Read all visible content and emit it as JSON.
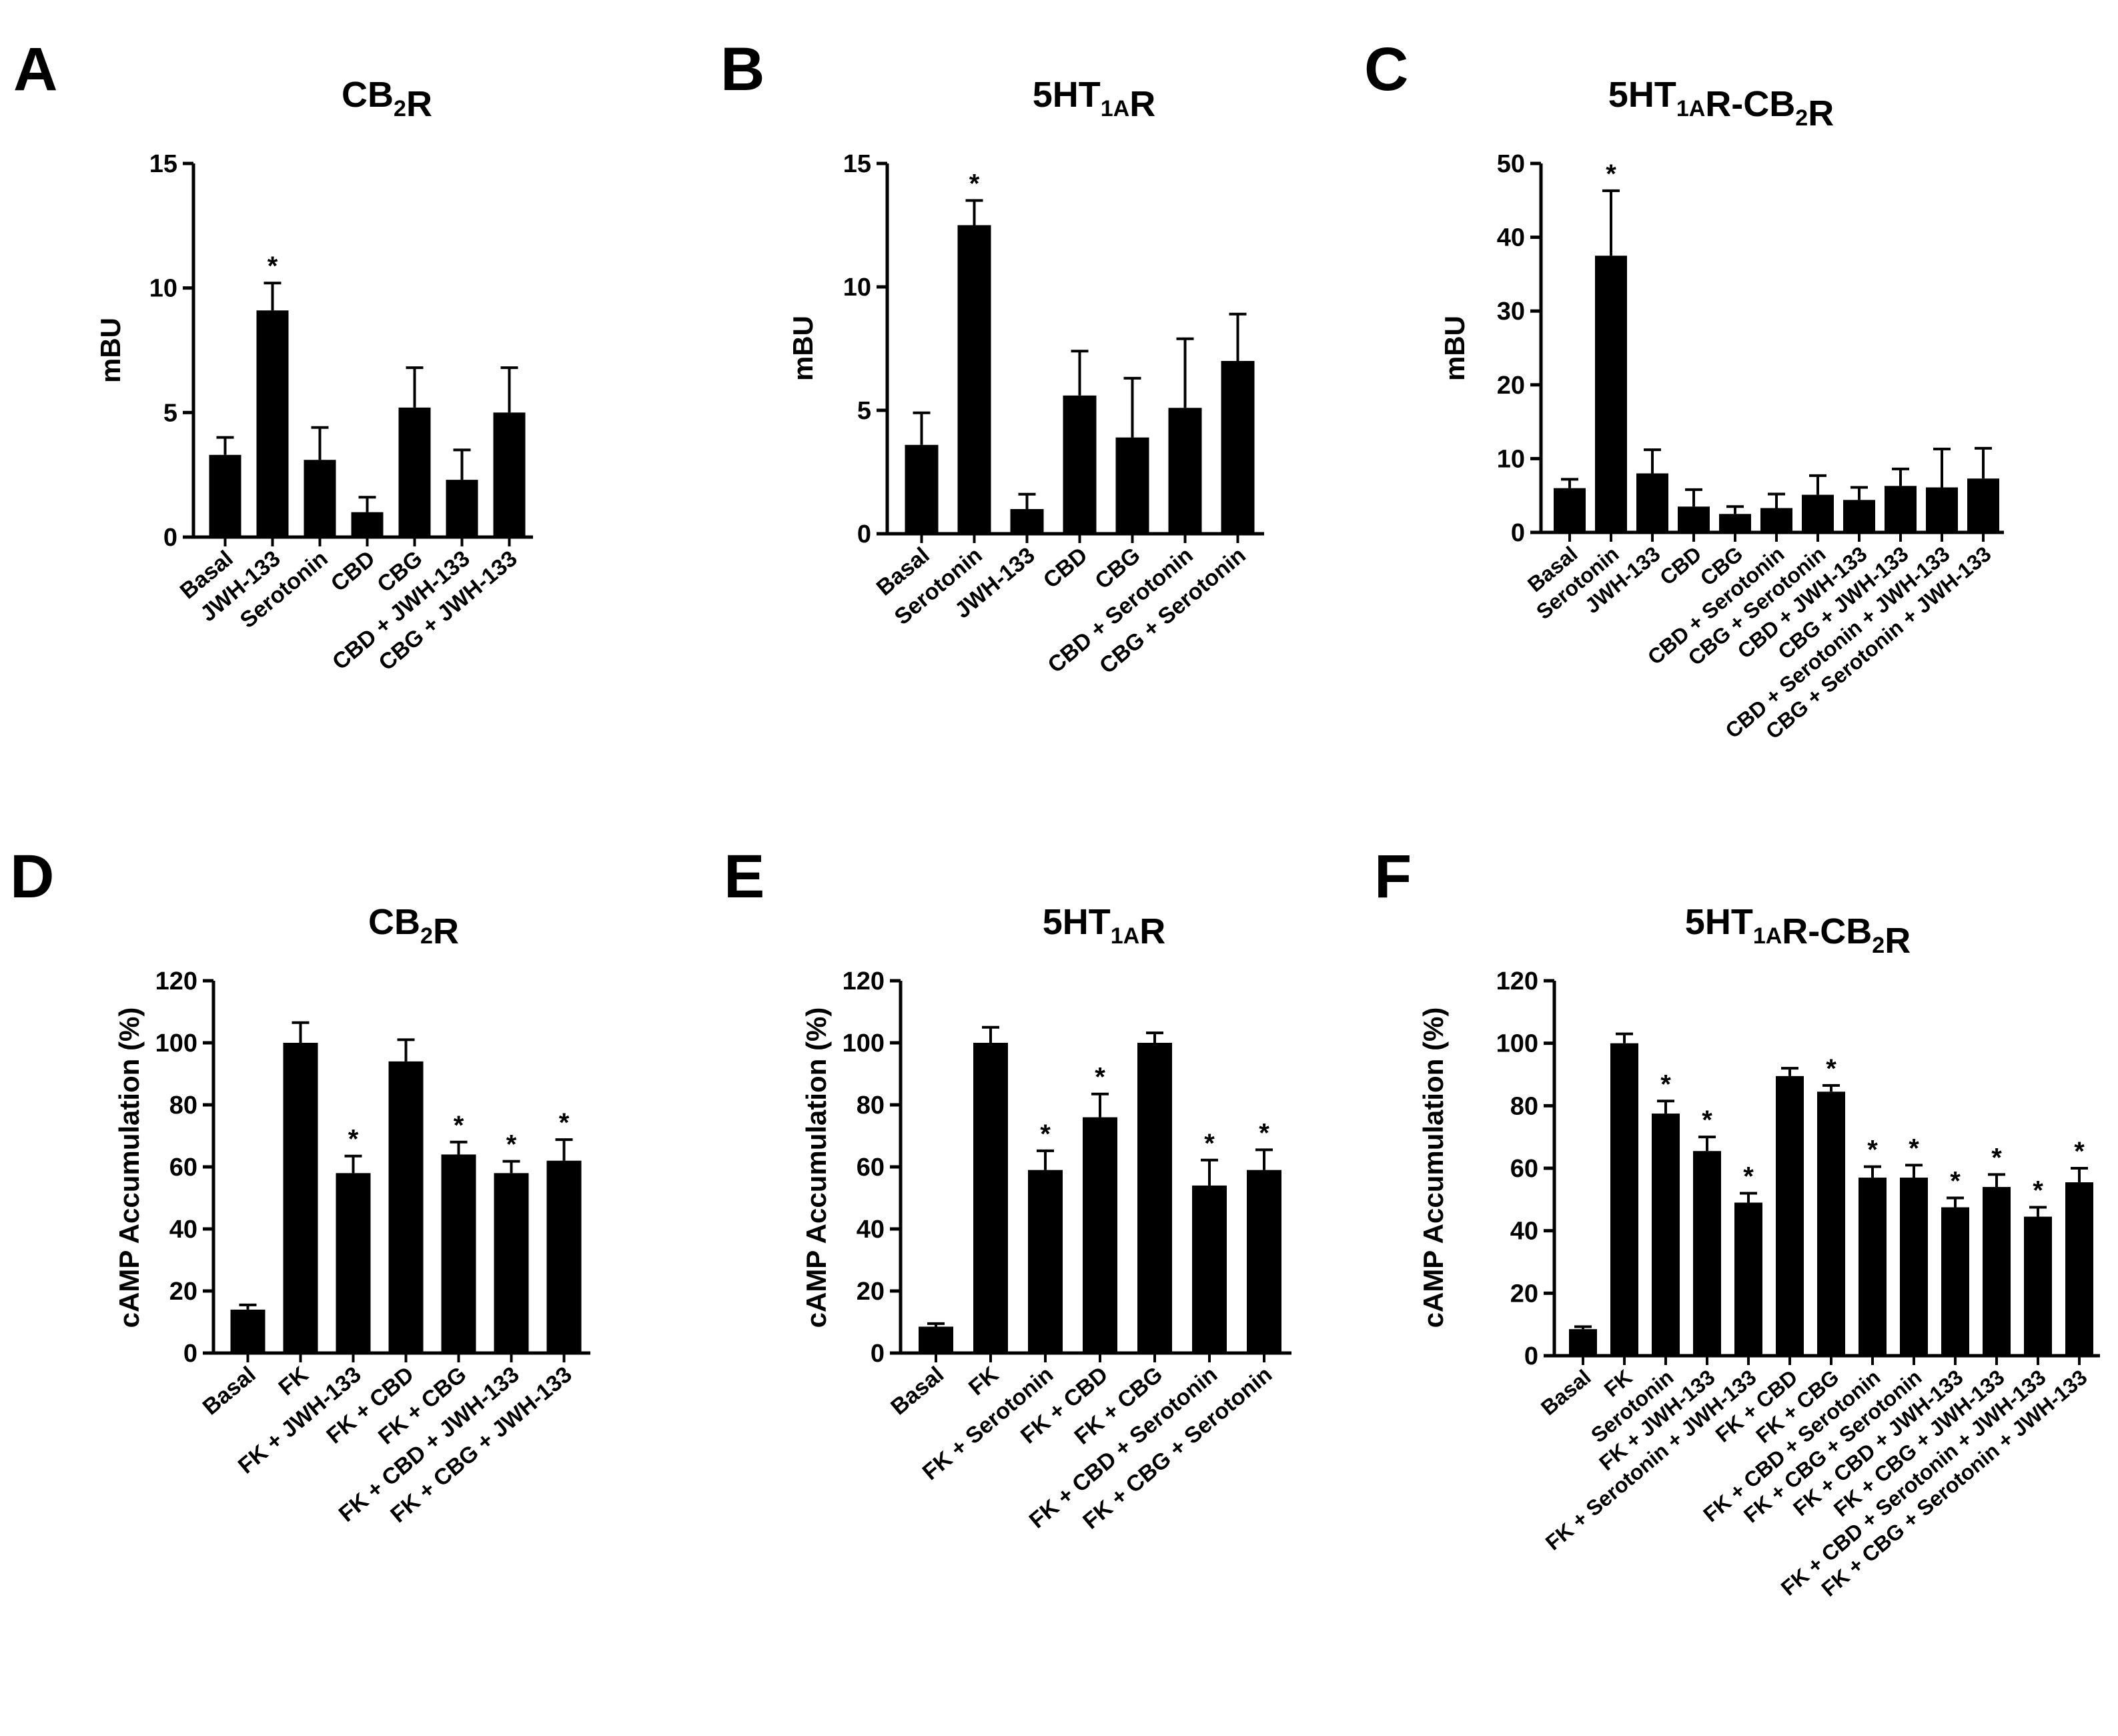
{
  "figure": {
    "description_free": true
  },
  "chart_data": [
    {
      "panel_label": "A",
      "type": "bar",
      "title_parts": [
        {
          "text": "CB"
        },
        {
          "text": "2",
          "sub": true
        },
        {
          "text": "R"
        }
      ],
      "ylabel": "mBU",
      "xlabel": "",
      "ylim": [
        0,
        15
      ],
      "yticks": [
        0,
        5,
        10,
        15
      ],
      "categories": [
        "Basal",
        "JWH-133",
        "Serotonin",
        "CBD",
        "CBG",
        "CBD + JWH-133",
        "CBG + JWH-133"
      ],
      "values": [
        3.3,
        9.1,
        3.1,
        1.0,
        5.2,
        2.3,
        5.0
      ],
      "errors": [
        0.7,
        1.1,
        1.3,
        0.6,
        1.6,
        1.2,
        1.8
      ],
      "significant": [
        false,
        true,
        false,
        false,
        false,
        false,
        false
      ],
      "color": "#000000"
    },
    {
      "panel_label": "B",
      "type": "bar",
      "title_parts": [
        {
          "text": "5HT"
        },
        {
          "text": "1A",
          "sub": true
        },
        {
          "text": "R"
        }
      ],
      "ylabel": "mBU",
      "xlabel": "",
      "ylim": [
        0,
        15
      ],
      "yticks": [
        0,
        5,
        10,
        15
      ],
      "categories": [
        "Basal",
        "Serotonin",
        "JWH-133",
        "CBD",
        "CBG",
        "CBD + Serotonin",
        "CBG + Serotonin"
      ],
      "values": [
        3.6,
        12.5,
        1.0,
        5.6,
        3.9,
        5.1,
        7.0
      ],
      "errors": [
        1.3,
        1.0,
        0.6,
        1.8,
        2.4,
        2.8,
        1.9
      ],
      "significant": [
        false,
        true,
        false,
        false,
        false,
        false,
        false
      ],
      "color": "#000000"
    },
    {
      "panel_label": "C",
      "type": "bar",
      "title_parts": [
        {
          "text": "5HT"
        },
        {
          "text": "1A",
          "sub": true
        },
        {
          "text": "R-CB"
        },
        {
          "text": "2",
          "sub": true
        },
        {
          "text": "R"
        }
      ],
      "ylabel": "mBU",
      "xlabel": "",
      "ylim": [
        0,
        50
      ],
      "yticks": [
        0,
        10,
        20,
        30,
        40,
        50
      ],
      "categories": [
        "Basal",
        "Serotonin",
        "JWH-133",
        "CBD",
        "CBG",
        "CBD + Serotonin",
        "CBG + Serotonin",
        "CBD + JWH-133",
        "CBG + JWH-133",
        "CBD + Serotonin + JWH-133",
        "CBG + Serotonin + JWH-133"
      ],
      "values": [
        6.0,
        37.5,
        8.0,
        3.5,
        2.5,
        3.3,
        5.1,
        4.4,
        6.3,
        6.1,
        7.3
      ],
      "errors": [
        1.2,
        8.8,
        3.2,
        2.3,
        1.0,
        1.9,
        2.6,
        1.7,
        2.3,
        5.2,
        4.1
      ],
      "significant": [
        false,
        true,
        false,
        false,
        false,
        false,
        false,
        false,
        false,
        false,
        false
      ],
      "color": "#000000"
    },
    {
      "panel_label": "D",
      "type": "bar",
      "title_parts": [
        {
          "text": "CB"
        },
        {
          "text": "2",
          "sub": true
        },
        {
          "text": "R"
        }
      ],
      "ylabel": "cAMP Accumulation (%)",
      "xlabel": "",
      "ylim": [
        0,
        120
      ],
      "yticks": [
        0,
        20,
        40,
        60,
        80,
        100,
        120
      ],
      "categories": [
        "Basal",
        "FK",
        "FK + JWH-133",
        "FK + CBD",
        "FK + CBG",
        "FK + CBD + JWH-133",
        "FK + CBG + JWH-133"
      ],
      "values": [
        14,
        100,
        58,
        94,
        64,
        58,
        62
      ],
      "errors": [
        1.5,
        6.5,
        5.5,
        7.0,
        4.0,
        3.8,
        6.8
      ],
      "significant": [
        false,
        false,
        true,
        false,
        true,
        true,
        true
      ],
      "color": "#000000"
    },
    {
      "panel_label": "E",
      "type": "bar",
      "title_parts": [
        {
          "text": "5HT"
        },
        {
          "text": "1A",
          "sub": true
        },
        {
          "text": "R"
        }
      ],
      "ylabel": "cAMP Accumulation (%)",
      "xlabel": "",
      "ylim": [
        0,
        120
      ],
      "yticks": [
        0,
        20,
        40,
        60,
        80,
        100,
        120
      ],
      "categories": [
        "Basal",
        "FK",
        "FK + Serotonin",
        "FK + CBD",
        "FK + CBG",
        "FK + CBD + Serotonin",
        "FK + CBG + Serotonin"
      ],
      "values": [
        8.5,
        100,
        59,
        76,
        100,
        54,
        59
      ],
      "errors": [
        1.0,
        5.0,
        6.2,
        7.5,
        3.2,
        8.2,
        6.5
      ],
      "significant": [
        false,
        false,
        true,
        true,
        false,
        true,
        true
      ],
      "color": "#000000"
    },
    {
      "panel_label": "F",
      "type": "bar",
      "title_parts": [
        {
          "text": "5HT"
        },
        {
          "text": "1A",
          "sub": true
        },
        {
          "text": "R-CB"
        },
        {
          "text": "2",
          "sub": true
        },
        {
          "text": "R"
        }
      ],
      "ylabel": "cAMP Accumulation (%)",
      "xlabel": "",
      "ylim": [
        0,
        120
      ],
      "yticks": [
        0,
        20,
        40,
        60,
        80,
        100,
        120
      ],
      "categories": [
        "Basal",
        "FK",
        "Serotonin",
        "FK + JWH-133",
        "FK + Serotonin + JWH-133",
        "FK + CBD",
        "FK + CBG",
        "FK + CBD + Serotonin",
        "FK + CBG + Serotonin",
        "FK + CBD + JWH-133",
        "FK + CBG + JWH-133",
        "FK + CBD + Serotonin + JWH-133",
        "FK + CBG + Serotonin + JWH-133"
      ],
      "values": [
        8.5,
        100,
        77.5,
        65.5,
        49,
        89.5,
        84.5,
        57,
        57,
        47.5,
        54,
        44.5,
        55.5
      ],
      "errors": [
        0.8,
        3.0,
        4.0,
        4.5,
        3.0,
        2.5,
        2.0,
        3.5,
        4.0,
        3.0,
        4.0,
        3.0,
        4.5
      ],
      "significant": [
        false,
        false,
        true,
        true,
        true,
        false,
        true,
        true,
        true,
        true,
        true,
        true,
        true
      ],
      "color": "#000000"
    }
  ]
}
